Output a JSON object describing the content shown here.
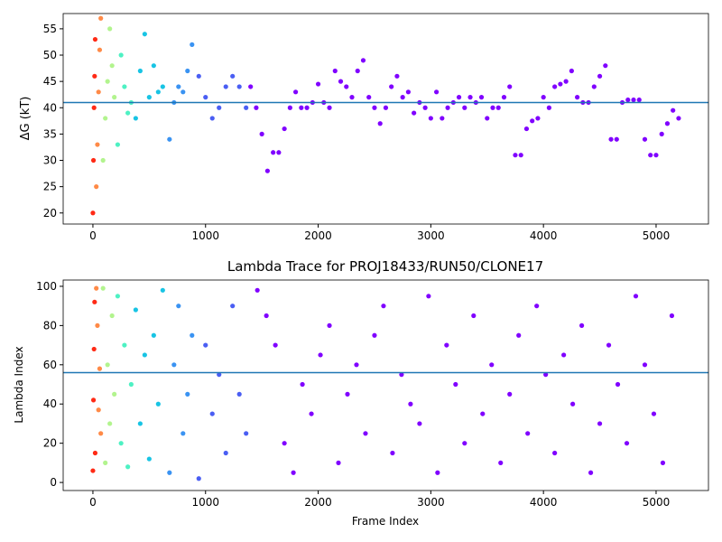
{
  "chart_data": [
    {
      "type": "scatter",
      "ylabel": "ΔG (kT)",
      "xlim": [
        -264,
        5465
      ],
      "ylim": [
        17.9,
        57.9
      ],
      "xticks": [
        0,
        1000,
        2000,
        3000,
        4000,
        5000
      ],
      "yticks": [
        20,
        25,
        30,
        35,
        40,
        45,
        50,
        55
      ],
      "hline": 41,
      "hline_color": "#1f77b4",
      "series": [
        {
          "color": "#ff2a15",
          "x": [
            0,
            5,
            10,
            15,
            20
          ],
          "values": [
            20,
            30,
            40,
            46,
            53
          ]
        },
        {
          "color": "#ff8a47",
          "x": [
            30,
            40,
            50,
            60,
            70
          ],
          "values": [
            25,
            33,
            43,
            51,
            57
          ]
        },
        {
          "color": "#b2f48e",
          "x": [
            90,
            110,
            130,
            150,
            170,
            190
          ],
          "values": [
            30,
            38,
            45,
            55,
            48,
            42
          ]
        },
        {
          "color": "#4ef1c3",
          "x": [
            220,
            250,
            280,
            310,
            340
          ],
          "values": [
            33,
            50,
            44,
            39,
            41
          ]
        },
        {
          "color": "#18c4e4",
          "x": [
            380,
            420,
            460,
            500,
            540,
            580,
            620
          ],
          "values": [
            38,
            47,
            54,
            42,
            48,
            43,
            44
          ]
        },
        {
          "color": "#3a93f2",
          "x": [
            680,
            720,
            760,
            800,
            840,
            880
          ],
          "values": [
            34,
            41,
            44,
            43,
            47,
            52
          ]
        },
        {
          "color": "#4a5ef3",
          "x": [
            940,
            1000,
            1060,
            1120,
            1180,
            1240,
            1300,
            1360
          ],
          "values": [
            46,
            42,
            38,
            40,
            44,
            46,
            44,
            40
          ]
        },
        {
          "color": "#8000ff",
          "x": [
            1400,
            1450,
            1500,
            1550,
            1600,
            1650,
            1700,
            1750,
            1800,
            1850,
            1900,
            1950,
            2000,
            2050,
            2100,
            2150,
            2200,
            2250,
            2300,
            2350,
            2400,
            2450,
            2500,
            2550,
            2600,
            2650,
            2700,
            2750,
            2800,
            2850,
            2900,
            2950,
            3000,
            3050,
            3100,
            3150,
            3200,
            3250,
            3300,
            3350,
            3400,
            3450,
            3500,
            3550,
            3600,
            3650,
            3700,
            3750,
            3800,
            3850,
            3900,
            3950,
            4000,
            4050,
            4100,
            4150,
            4200,
            4250,
            4300,
            4350,
            4400,
            4450,
            4500,
            4550,
            4600,
            4650,
            4700,
            4750,
            4800,
            4850,
            4900,
            4950,
            5000,
            5050,
            5100,
            5150,
            5200
          ],
          "values": [
            44,
            40,
            35,
            28,
            31.5,
            31.5,
            36,
            40,
            43,
            40,
            40,
            41,
            44.5,
            41,
            40,
            47,
            45,
            44,
            42,
            47,
            49,
            42,
            40,
            37,
            40,
            44,
            46,
            42,
            43,
            39,
            41,
            40,
            38,
            43,
            38,
            40,
            41,
            42,
            40,
            42,
            41,
            42,
            38,
            40,
            40,
            42,
            44,
            31,
            31,
            36,
            37.5,
            38,
            42,
            40,
            44,
            44.5,
            45,
            47,
            42,
            41,
            41,
            44,
            46,
            48,
            34,
            34,
            41,
            41.5,
            41.5,
            41.5,
            34,
            31,
            31,
            35,
            37,
            39.5,
            38
          ]
        }
      ]
    },
    {
      "type": "scatter",
      "title": "Lambda Trace for PROJ18433/RUN50/CLONE17",
      "xlabel": "Frame Index",
      "ylabel": "Lambda Index",
      "xlim": [
        -264,
        5465
      ],
      "ylim": [
        -4.1,
        103.2
      ],
      "xticks": [
        0,
        1000,
        2000,
        3000,
        4000,
        5000
      ],
      "yticks": [
        0,
        20,
        40,
        60,
        80,
        100
      ],
      "hline": 56,
      "hline_color": "#1f77b4",
      "series": [
        {
          "color": "#ff2a15",
          "x": [
            0,
            5,
            10,
            15,
            20
          ],
          "values": [
            6,
            42,
            68,
            92,
            15
          ]
        },
        {
          "color": "#ff8a47",
          "x": [
            30,
            40,
            50,
            60,
            70
          ],
          "values": [
            99,
            80,
            37,
            58,
            25
          ]
        },
        {
          "color": "#b2f48e",
          "x": [
            90,
            110,
            130,
            150,
            170,
            190
          ],
          "values": [
            99,
            10,
            60,
            30,
            85,
            45
          ]
        },
        {
          "color": "#4ef1c3",
          "x": [
            220,
            250,
            280,
            310,
            340
          ],
          "values": [
            95,
            20,
            70,
            8,
            50
          ]
        },
        {
          "color": "#18c4e4",
          "x": [
            380,
            420,
            460,
            500,
            540,
            580,
            620
          ],
          "values": [
            88,
            30,
            65,
            12,
            75,
            40,
            98
          ]
        },
        {
          "color": "#3a93f2",
          "x": [
            680,
            720,
            760,
            800,
            840,
            880
          ],
          "values": [
            5,
            60,
            90,
            25,
            45,
            75
          ]
        },
        {
          "color": "#4a5ef3",
          "x": [
            940,
            1000,
            1060,
            1120,
            1180,
            1240,
            1300,
            1360
          ],
          "values": [
            2,
            70,
            35,
            55,
            15,
            90,
            45,
            25
          ]
        },
        {
          "color": "#8000ff",
          "x": [
            1460,
            1540,
            1620,
            1700,
            1780,
            1860,
            1940,
            2020,
            2100,
            2180,
            2260,
            2340,
            2420,
            2500,
            2580,
            2660,
            2740,
            2820,
            2900,
            2980,
            3060,
            3140,
            3220,
            3300,
            3380,
            3460,
            3540,
            3620,
            3700,
            3780,
            3860,
            3940,
            4020,
            4100,
            4180,
            4260,
            4340,
            4420,
            4500,
            4580,
            4660,
            4740,
            4820,
            4900,
            4980,
            5060,
            5140
          ],
          "values": [
            98,
            85,
            70,
            20,
            5,
            50,
            35,
            65,
            80,
            10,
            45,
            60,
            25,
            75,
            90,
            15,
            55,
            40,
            30,
            95,
            5,
            70,
            50,
            20,
            85,
            35,
            60,
            10,
            45,
            75,
            25,
            90,
            55,
            15,
            65,
            40,
            80,
            5,
            30,
            70,
            50,
            20,
            95,
            60,
            35,
            10,
            85
          ]
        }
      ]
    }
  ]
}
